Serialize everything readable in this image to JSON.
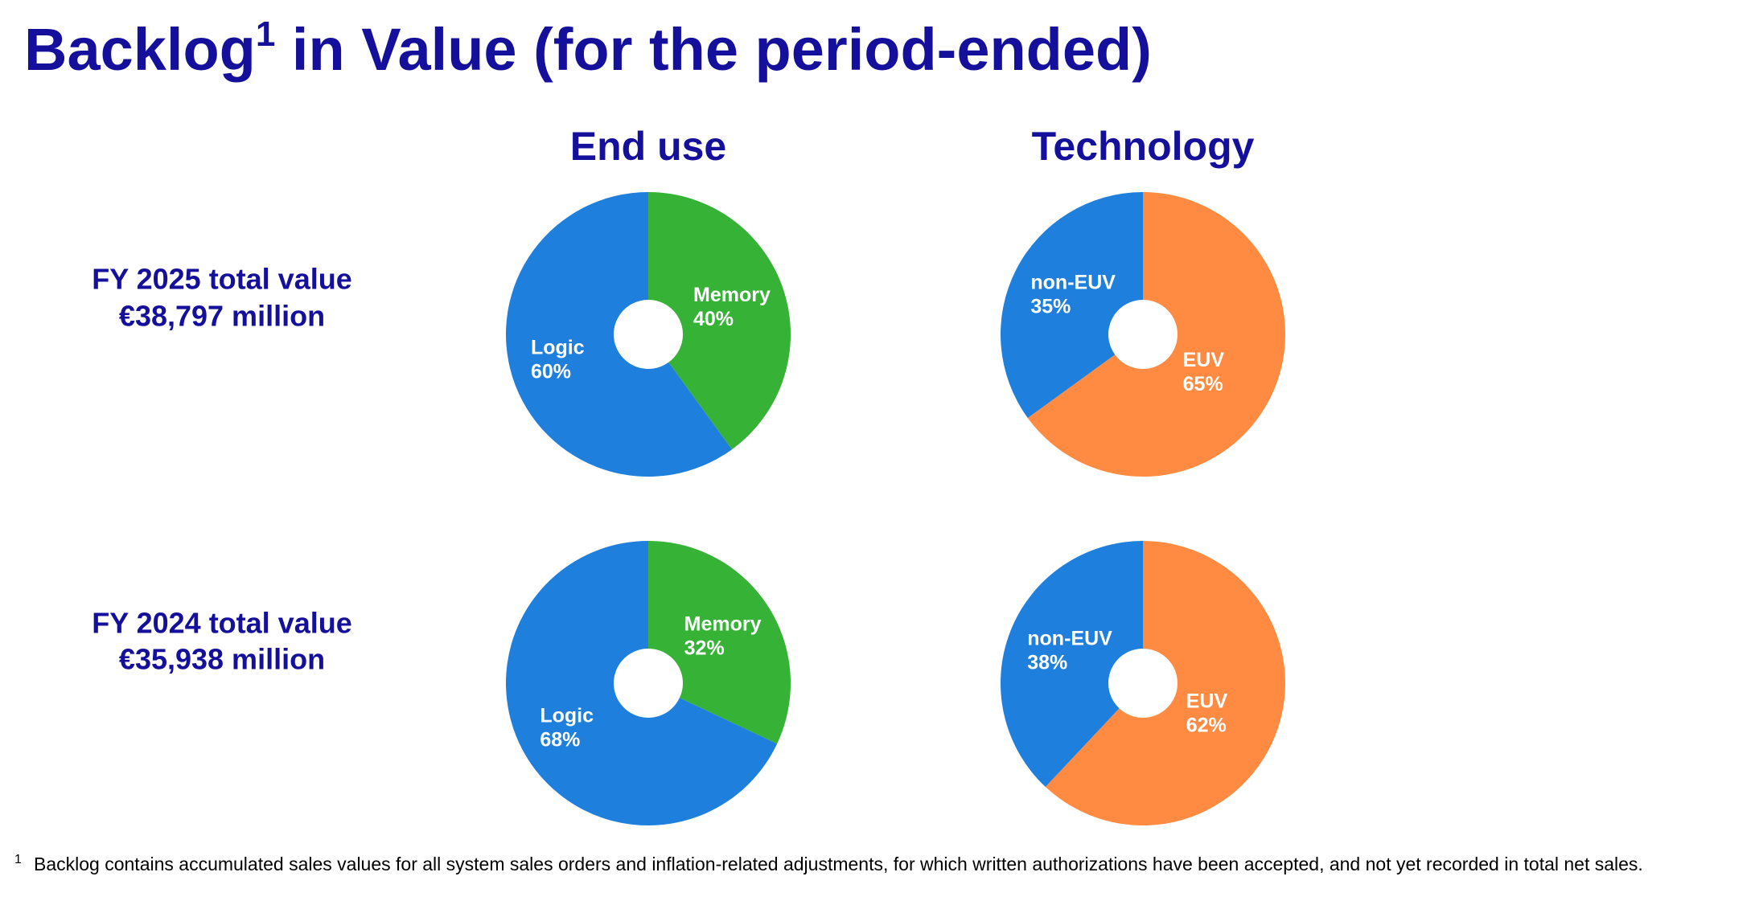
{
  "title": {
    "text": "Backlog",
    "superscript": "1",
    "rest": " in Value (for the period-ended)"
  },
  "columns": [
    "End use",
    "Technology"
  ],
  "rows": [
    {
      "label": "FY 2025 total value",
      "total": "€38,797 million"
    },
    {
      "label": "FY 2024 total value",
      "total": "€35,938 million"
    }
  ],
  "chart_data": [
    {
      "type": "pie",
      "categories": [
        "Memory",
        "Logic"
      ],
      "values": [
        40,
        60
      ],
      "value_labels": [
        "40%",
        "60%"
      ],
      "colors": [
        "#36b336",
        "#1e7fdc"
      ]
    },
    {
      "type": "pie",
      "categories": [
        "EUV",
        "non-EUV"
      ],
      "values": [
        65,
        35
      ],
      "value_labels": [
        "65%",
        "35%"
      ],
      "colors": [
        "#ff8a42",
        "#1e7fdc"
      ]
    },
    {
      "type": "pie",
      "categories": [
        "Memory",
        "Logic"
      ],
      "values": [
        32,
        68
      ],
      "value_labels": [
        "32%",
        "68%"
      ],
      "colors": [
        "#36b336",
        "#1e7fdc"
      ]
    },
    {
      "type": "pie",
      "categories": [
        "EUV",
        "non-EUV"
      ],
      "values": [
        62,
        38
      ],
      "value_labels": [
        "62%",
        "38%"
      ],
      "colors": [
        "#ff8a42",
        "#1e7fdc"
      ]
    }
  ],
  "footnote": {
    "marker": "1",
    "text": "Backlog contains accumulated sales values for all system sales orders and inflation-related adjustments, for which written authorizations have been accepted, and not yet recorded in total net sales."
  }
}
